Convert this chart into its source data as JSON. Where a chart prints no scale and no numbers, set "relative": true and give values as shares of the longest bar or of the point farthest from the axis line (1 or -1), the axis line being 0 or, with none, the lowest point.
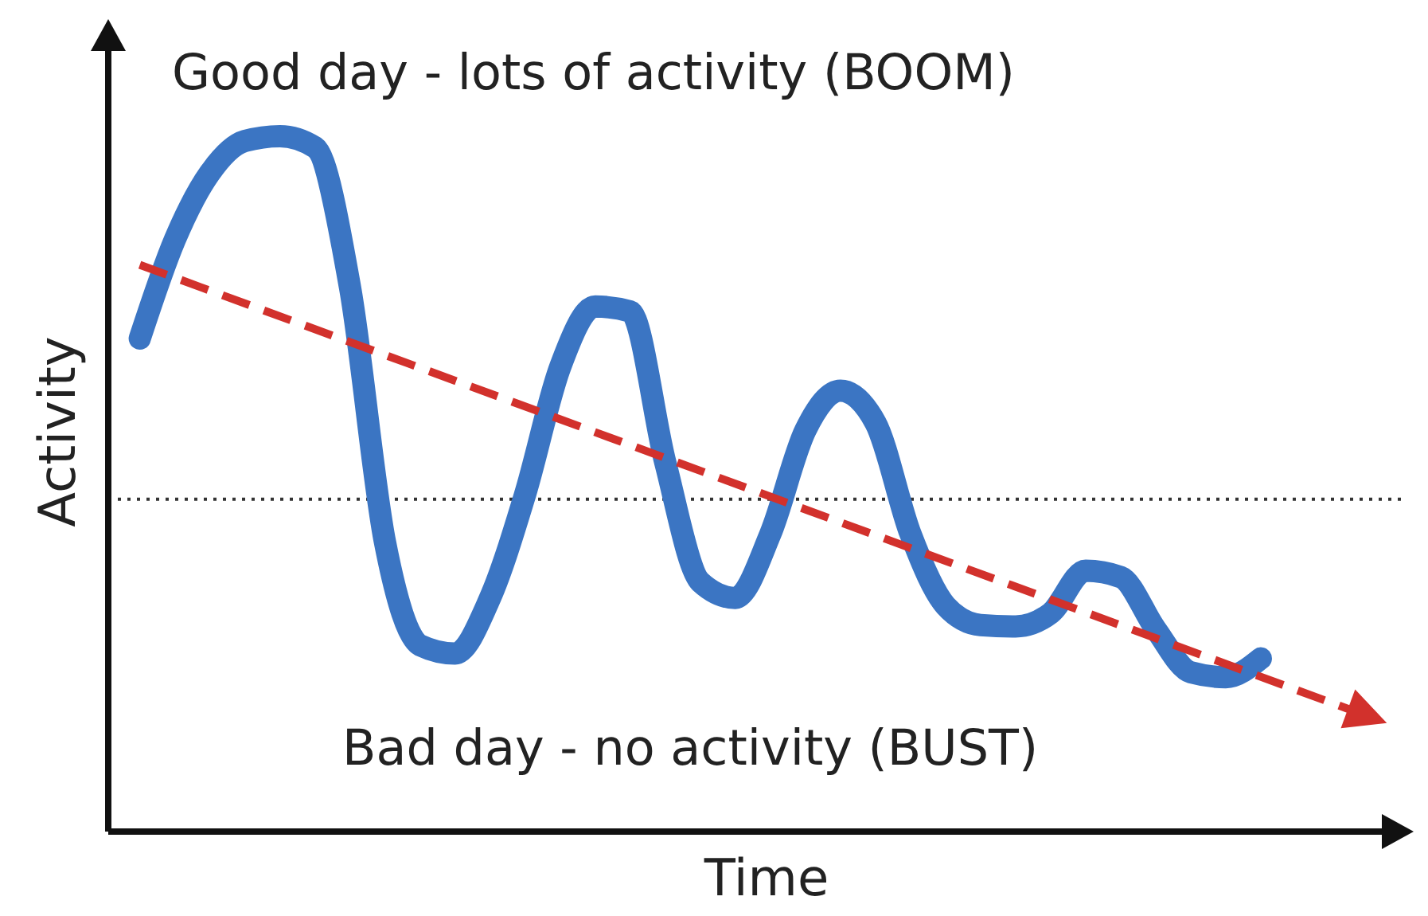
{
  "chart_data": {
    "type": "line",
    "relative": true,
    "xlabel": "Time",
    "ylabel": "Activity",
    "annotations": [
      "Good day - lots of activity (BOOM)",
      "Bad day - no activity (BUST)"
    ],
    "categories": [
      null,
      null,
      null,
      null,
      null,
      null,
      null,
      null,
      null,
      null,
      null,
      null,
      null,
      null,
      null,
      null,
      null,
      null,
      null,
      null,
      null,
      null,
      null,
      null,
      null,
      null,
      null,
      null,
      null,
      null,
      null,
      null,
      null,
      null,
      null,
      null
    ],
    "series": [
      {
        "color": "#3b75c3",
        "line_style": "solid",
        "values": [
          0.709,
          0.851,
          0.947,
          0.993,
          1,
          0.984,
          0.783,
          0.416,
          0.268,
          0.256,
          0.336,
          0.485,
          0.668,
          0.755,
          0.748,
          0.531,
          0.359,
          0.336,
          0.428,
          0.577,
          0.634,
          0.588,
          0.428,
          0.325,
          0.297,
          0.295,
          0.314,
          0.375,
          0.366,
          0.291,
          0.229,
          0.222,
          0.249,
          null,
          null,
          null
        ]
      },
      {
        "color": "#d2312c",
        "line_style": "dashed",
        "values": [
          0.815,
          null,
          null,
          null,
          null,
          null,
          null,
          null,
          null,
          null,
          null,
          null,
          null,
          null,
          null,
          null,
          null,
          null,
          null,
          null,
          null,
          null,
          null,
          null,
          null,
          null,
          null,
          null,
          null,
          null,
          null,
          null,
          null,
          null,
          null,
          0.167
        ]
      }
    ],
    "ref_lines": [
      {
        "axis": "y",
        "value": 0.478,
        "color": "#333333",
        "line_style": "dotted"
      }
    ],
    "grid": false,
    "legend": false
  }
}
